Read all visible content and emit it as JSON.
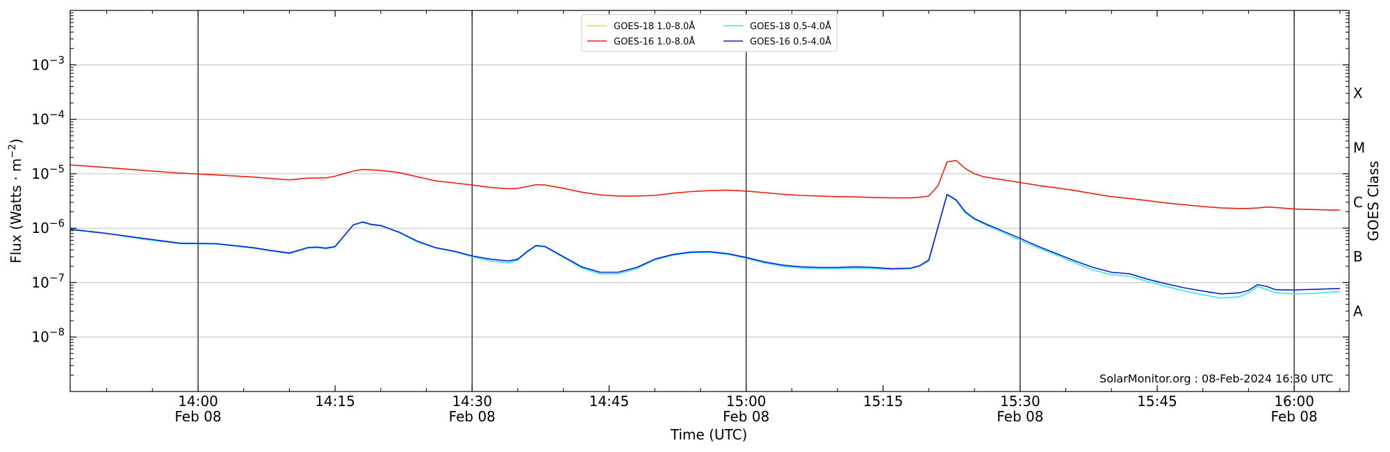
{
  "chart_data": {
    "type": "line",
    "ylabel_prefix": "Flux (Watts · m",
    "ylabel_exp": "−2",
    "ylabel_suffix": ")",
    "xlabel": "Time (UTC)",
    "right_label": "GOES Class",
    "credit": "SolarMonitor.org : 08-Feb-2024 16:30 UTC",
    "y_scale": "log",
    "ylim": [
      1e-09,
      0.01
    ],
    "xlim": [
      "13:46",
      "16:06"
    ],
    "grid": {
      "horizontal": true,
      "vertical_at_half_hours": true
    },
    "y_ticks": [
      {
        "value": 1e-08,
        "base": "10",
        "exp": "−8"
      },
      {
        "value": 1e-07,
        "base": "10",
        "exp": "−7"
      },
      {
        "value": 1e-06,
        "base": "10",
        "exp": "−6"
      },
      {
        "value": 1e-05,
        "base": "10",
        "exp": "−5"
      },
      {
        "value": 0.0001,
        "base": "10",
        "exp": "−4"
      },
      {
        "value": 0.001,
        "base": "10",
        "exp": "−3"
      }
    ],
    "x_ticks": [
      {
        "time": "14:00",
        "label": "14:00",
        "date": "Feb 08"
      },
      {
        "time": "14:15",
        "label": "14:15",
        "date": ""
      },
      {
        "time": "14:30",
        "label": "14:30",
        "date": "Feb 08"
      },
      {
        "time": "14:45",
        "label": "14:45",
        "date": ""
      },
      {
        "time": "15:00",
        "label": "15:00",
        "date": "Feb 08"
      },
      {
        "time": "15:15",
        "label": "15:15",
        "date": ""
      },
      {
        "time": "15:30",
        "label": "15:30",
        "date": "Feb 08"
      },
      {
        "time": "15:45",
        "label": "15:45",
        "date": ""
      },
      {
        "time": "16:00",
        "label": "16:00",
        "date": "Feb 08"
      }
    ],
    "goes_classes": [
      {
        "label": "X",
        "value": 0.0003
      },
      {
        "label": "M",
        "value": 3e-05
      },
      {
        "label": "C",
        "value": 3e-06
      },
      {
        "label": "B",
        "value": 3e-07
      },
      {
        "label": "A",
        "value": 3e-08
      }
    ],
    "legend_placement": "top-center",
    "legend_angstrom": "Å",
    "series": [
      {
        "name": "GOES-18 1.0-8.0",
        "color": "#ffd700",
        "x": [],
        "y": []
      },
      {
        "name": "GOES-16 1.0-8.0",
        "color": "#e8200a",
        "x": [
          "13:46",
          "13:50",
          "13:54",
          "13:58",
          "14:02",
          "14:06",
          "14:10",
          "14:12",
          "14:14",
          "14:15",
          "14:17",
          "14:18",
          "14:20",
          "14:22",
          "14:24",
          "14:26",
          "14:28",
          "14:30",
          "14:32",
          "14:34",
          "14:35",
          "14:36",
          "14:37",
          "14:38",
          "14:40",
          "14:42",
          "14:44",
          "14:46",
          "14:48",
          "14:50",
          "14:52",
          "14:54",
          "14:56",
          "14:58",
          "15:00",
          "15:02",
          "15:04",
          "15:06",
          "15:08",
          "15:10",
          "15:12",
          "15:14",
          "15:16",
          "15:18",
          "15:19",
          "15:20",
          "15:21",
          "15:22",
          "15:23",
          "15:24",
          "15:25",
          "15:26",
          "15:28",
          "15:30",
          "15:32",
          "15:34",
          "15:36",
          "15:38",
          "15:40",
          "15:42",
          "15:44",
          "15:46",
          "15:48",
          "15:50",
          "15:52",
          "15:54",
          "15:55",
          "15:56",
          "15:57",
          "15:58",
          "16:00",
          "16:02",
          "16:04",
          "16:05"
        ],
        "y": [
          1.45e-05,
          1.3e-05,
          1.15e-05,
          1.03e-05,
          9.5e-06,
          8.7e-06,
          7.7e-06,
          8.3e-06,
          8.4e-06,
          9e-06,
          1.12e-05,
          1.2e-05,
          1.15e-05,
          1.05e-05,
          8.8e-06,
          7.4e-06,
          6.8e-06,
          6.2e-06,
          5.6e-06,
          5.3e-06,
          5.4e-06,
          5.8e-06,
          6.3e-06,
          6.2e-06,
          5.4e-06,
          4.6e-06,
          4.1e-06,
          3.9e-06,
          3.9e-06,
          4e-06,
          4.4e-06,
          4.7e-06,
          4.9e-06,
          5e-06,
          4.8e-06,
          4.5e-06,
          4.2e-06,
          4e-06,
          3.9e-06,
          3.8e-06,
          3.75e-06,
          3.65e-06,
          3.6e-06,
          3.6e-06,
          3.7e-06,
          3.9e-06,
          6e-06,
          1.65e-05,
          1.75e-05,
          1.25e-05,
          1e-05,
          8.8e-06,
          7.8e-06,
          6.9e-06,
          6.1e-06,
          5.5e-06,
          4.9e-06,
          4.3e-06,
          3.8e-06,
          3.5e-06,
          3.2e-06,
          2.9e-06,
          2.7e-06,
          2.5e-06,
          2.35e-06,
          2.3e-06,
          2.3e-06,
          2.35e-06,
          2.45e-06,
          2.4e-06,
          2.25e-06,
          2.2e-06,
          2.15e-06,
          2.15e-06
        ]
      },
      {
        "name": "GOES-18 0.5-4.0",
        "color": "#2ee8f5",
        "x": [
          "13:46",
          "13:50",
          "13:54",
          "13:58",
          "14:02",
          "14:06",
          "14:08",
          "14:10",
          "14:12",
          "14:13",
          "14:14",
          "14:15",
          "14:17",
          "14:18",
          "14:19",
          "14:20",
          "14:22",
          "14:24",
          "14:26",
          "14:28",
          "14:30",
          "14:32",
          "14:34",
          "14:35",
          "14:36",
          "14:37",
          "14:38",
          "14:40",
          "14:42",
          "14:44",
          "14:46",
          "14:48",
          "14:50",
          "14:52",
          "14:54",
          "14:56",
          "14:58",
          "15:00",
          "15:02",
          "15:04",
          "15:06",
          "15:08",
          "15:10",
          "15:12",
          "15:14",
          "15:16",
          "15:18",
          "15:19",
          "15:20",
          "15:22",
          "15:23",
          "15:24",
          "15:25",
          "15:26",
          "15:28",
          "15:30",
          "15:32",
          "15:34",
          "15:36",
          "15:38",
          "15:40",
          "15:42",
          "15:44",
          "15:46",
          "15:48",
          "15:50",
          "15:52",
          "15:54",
          "15:55",
          "15:56",
          "15:57",
          "15:58",
          "16:00",
          "16:02",
          "16:04",
          "16:05"
        ],
        "y": [
          9.8e-07,
          8e-07,
          6.3e-07,
          5.2e-07,
          5.1e-07,
          4.3e-07,
          3.8e-07,
          3.4e-07,
          4.3e-07,
          4.4e-07,
          4.2e-07,
          4.5e-07,
          1.15e-06,
          1.28e-06,
          1.15e-06,
          1.1e-06,
          8.3e-07,
          5.6e-07,
          4.3e-07,
          3.7e-07,
          3e-07,
          2.5e-07,
          2.3e-07,
          2.6e-07,
          3.6e-07,
          4.7e-07,
          4.5e-07,
          2.9e-07,
          1.85e-07,
          1.45e-07,
          1.45e-07,
          1.8e-07,
          2.6e-07,
          3.2e-07,
          3.55e-07,
          3.6e-07,
          3.3e-07,
          2.8e-07,
          2.3e-07,
          2e-07,
          1.85e-07,
          1.8e-07,
          1.8e-07,
          1.85e-07,
          1.8e-07,
          1.75e-07,
          1.8e-07,
          2e-07,
          2.5e-07,
          4.1e-06,
          3.2e-06,
          1.9e-06,
          1.45e-06,
          1.2e-06,
          8.5e-07,
          6e-07,
          4.3e-07,
          3.2e-07,
          2.3e-07,
          1.7e-07,
          1.4e-07,
          1.3e-07,
          1.05e-07,
          8.5e-08,
          7e-08,
          6e-08,
          5.2e-08,
          5.5e-08,
          6.5e-08,
          8.5e-08,
          7.5e-08,
          6.5e-08,
          6.2e-08,
          6.3e-08,
          6.7e-08,
          6.8e-08
        ]
      },
      {
        "name": "GOES-16 0.5-4.0",
        "color": "#0a1fd9",
        "x": [
          "13:46",
          "13:50",
          "13:54",
          "13:58",
          "14:02",
          "14:06",
          "14:08",
          "14:10",
          "14:12",
          "14:13",
          "14:14",
          "14:15",
          "14:17",
          "14:18",
          "14:19",
          "14:20",
          "14:22",
          "14:24",
          "14:26",
          "14:28",
          "14:30",
          "14:32",
          "14:34",
          "14:35",
          "14:36",
          "14:37",
          "14:38",
          "14:40",
          "14:42",
          "14:44",
          "14:46",
          "14:48",
          "14:50",
          "14:52",
          "14:54",
          "14:56",
          "14:58",
          "15:00",
          "15:02",
          "15:04",
          "15:06",
          "15:08",
          "15:10",
          "15:12",
          "15:14",
          "15:16",
          "15:18",
          "15:19",
          "15:20",
          "15:22",
          "15:23",
          "15:24",
          "15:25",
          "15:26",
          "15:28",
          "15:30",
          "15:32",
          "15:34",
          "15:36",
          "15:38",
          "15:40",
          "15:42",
          "15:44",
          "15:46",
          "15:48",
          "15:50",
          "15:52",
          "15:54",
          "15:55",
          "15:56",
          "15:57",
          "15:58",
          "16:00",
          "16:02",
          "16:04",
          "16:05"
        ],
        "y": [
          9.5e-07,
          8e-07,
          6.5e-07,
          5.3e-07,
          5.2e-07,
          4.4e-07,
          3.9e-07,
          3.5e-07,
          4.4e-07,
          4.5e-07,
          4.3e-07,
          4.6e-07,
          1.15e-06,
          1.3e-06,
          1.17e-06,
          1.12e-06,
          8.5e-07,
          5.8e-07,
          4.4e-07,
          3.8e-07,
          3.1e-07,
          2.7e-07,
          2.5e-07,
          2.7e-07,
          3.7e-07,
          4.8e-07,
          4.6e-07,
          3e-07,
          1.95e-07,
          1.55e-07,
          1.55e-07,
          1.9e-07,
          2.7e-07,
          3.3e-07,
          3.65e-07,
          3.7e-07,
          3.4e-07,
          2.9e-07,
          2.4e-07,
          2.1e-07,
          1.95e-07,
          1.9e-07,
          1.9e-07,
          1.95e-07,
          1.9e-07,
          1.8e-07,
          1.85e-07,
          2.05e-07,
          2.6e-07,
          4.2e-06,
          3.3e-06,
          2e-06,
          1.5e-06,
          1.25e-06,
          9e-07,
          6.5e-07,
          4.6e-07,
          3.4e-07,
          2.5e-07,
          1.9e-07,
          1.55e-07,
          1.45e-07,
          1.15e-07,
          9.5e-08,
          8e-08,
          7e-08,
          6.2e-08,
          6.5e-08,
          7.2e-08,
          9.2e-08,
          8.5e-08,
          7.4e-08,
          7.3e-08,
          7.5e-08,
          7.7e-08,
          7.8e-08
        ]
      }
    ]
  }
}
